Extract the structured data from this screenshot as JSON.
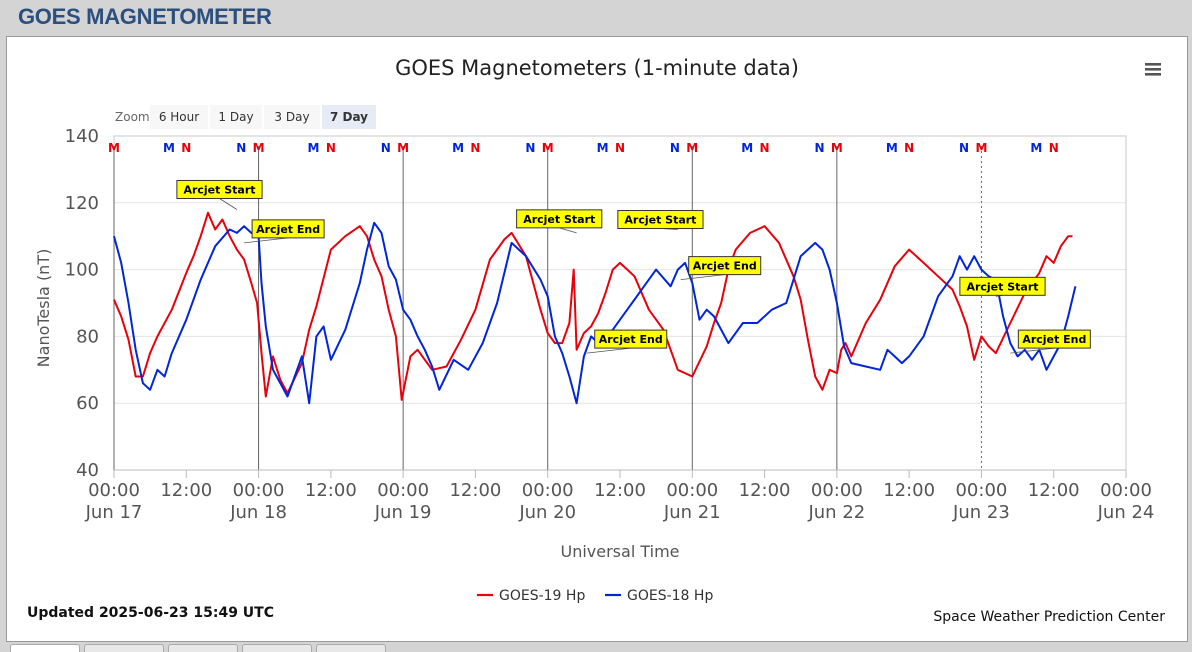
{
  "page": {
    "title": "GOES MAGNETOMETER"
  },
  "zoom": {
    "label": "Zoom",
    "buttons": [
      "6 Hour",
      "1 Day",
      "3 Day",
      "7 Day"
    ],
    "selected": "7 Day"
  },
  "footer": {
    "updated": "Updated 2025-06-23 15:49 UTC",
    "credit": "Space Weather Prediction Center"
  },
  "chart_data": {
    "type": "line",
    "title": "GOES Magnetometers (1-minute data)",
    "xlabel": "Universal Time",
    "ylabel": "NanoTesla (nT)",
    "ylim": [
      40,
      140
    ],
    "y_ticks": [
      "40",
      "60",
      "80",
      "100",
      "120",
      "140"
    ],
    "x_ticks": [
      {
        "day": 0,
        "t": "00:00",
        "d": "Jun 17"
      },
      {
        "day": 0.5,
        "t": "12:00",
        "d": ""
      },
      {
        "day": 1,
        "t": "00:00",
        "d": "Jun 18"
      },
      {
        "day": 1.5,
        "t": "12:00",
        "d": ""
      },
      {
        "day": 2,
        "t": "00:00",
        "d": "Jun 19"
      },
      {
        "day": 2.5,
        "t": "12:00",
        "d": ""
      },
      {
        "day": 3,
        "t": "00:00",
        "d": "Jun 20"
      },
      {
        "day": 3.5,
        "t": "12:00",
        "d": ""
      },
      {
        "day": 4,
        "t": "00:00",
        "d": "Jun 21"
      },
      {
        "day": 4.5,
        "t": "12:00",
        "d": ""
      },
      {
        "day": 5,
        "t": "00:00",
        "d": "Jun 22"
      },
      {
        "day": 5.5,
        "t": "12:00",
        "d": ""
      },
      {
        "day": 6,
        "t": "00:00",
        "d": "Jun 23"
      },
      {
        "day": 6.5,
        "t": "12:00",
        "d": ""
      },
      {
        "day": 7,
        "t": "00:00",
        "d": "Jun 24"
      }
    ],
    "grid": "horizontal",
    "legend_position": "bottom-center",
    "series": [
      {
        "name": "GOES-19 Hp",
        "color": "#e8000b",
        "x": [
          0,
          0.05,
          0.1,
          0.15,
          0.2,
          0.25,
          0.3,
          0.4,
          0.5,
          0.55,
          0.6,
          0.65,
          0.7,
          0.75,
          0.8,
          0.85,
          0.9,
          0.95,
          0.99,
          1.02,
          1.05,
          1.1,
          1.15,
          1.2,
          1.3,
          1.35,
          1.4,
          1.5,
          1.6,
          1.7,
          1.75,
          1.8,
          1.85,
          1.9,
          1.95,
          1.99,
          2.05,
          2.1,
          2.2,
          2.3,
          2.4,
          2.5,
          2.6,
          2.7,
          2.75,
          2.85,
          2.95,
          3.0,
          3.05,
          3.1,
          3.15,
          3.18,
          3.2,
          3.25,
          3.3,
          3.35,
          3.4,
          3.45,
          3.5,
          3.6,
          3.7,
          3.8,
          3.9,
          4.0,
          4.1,
          4.15,
          4.2,
          4.25,
          4.3,
          4.4,
          4.5,
          4.6,
          4.7,
          4.75,
          4.8,
          4.85,
          4.9,
          4.95,
          5.0,
          5.03,
          5.06,
          5.1,
          5.2,
          5.3,
          5.4,
          5.5,
          5.6,
          5.7,
          5.8,
          5.85,
          5.9,
          5.95,
          6.0,
          6.05,
          6.1,
          6.2,
          6.3,
          6.4,
          6.45,
          6.5,
          6.55,
          6.6,
          6.63
        ],
        "y": [
          91,
          86,
          79,
          68,
          68,
          75,
          80,
          88,
          99,
          104,
          110,
          117,
          112,
          115,
          110,
          106,
          103,
          96,
          90,
          75,
          62,
          74,
          67,
          63,
          72,
          82,
          89,
          106,
          110,
          113,
          110,
          103,
          98,
          88,
          80,
          61,
          74,
          76,
          70,
          71,
          79,
          88,
          103,
          109,
          111,
          104,
          88,
          81,
          78,
          78,
          84,
          100,
          76,
          81,
          83,
          87,
          93,
          100,
          102,
          98,
          88,
          82,
          70,
          68,
          77,
          84,
          90,
          100,
          106,
          111,
          113,
          108,
          98,
          91,
          79,
          68,
          64,
          70,
          69,
          76,
          78,
          74,
          84,
          91,
          101,
          106,
          102,
          98,
          94,
          89,
          83,
          73,
          80,
          77,
          75,
          84,
          93,
          99,
          104,
          102,
          107,
          110,
          110
        ]
      },
      {
        "name": "GOES-18 Hp",
        "color": "#0025db",
        "x": [
          0,
          0.05,
          0.1,
          0.15,
          0.2,
          0.25,
          0.3,
          0.35,
          0.4,
          0.5,
          0.6,
          0.7,
          0.8,
          0.85,
          0.9,
          0.95,
          1.0,
          1.02,
          1.05,
          1.1,
          1.15,
          1.2,
          1.3,
          1.35,
          1.4,
          1.45,
          1.5,
          1.6,
          1.7,
          1.75,
          1.8,
          1.85,
          1.9,
          1.95,
          2.0,
          2.05,
          2.1,
          2.15,
          2.2,
          2.25,
          2.35,
          2.45,
          2.55,
          2.65,
          2.75,
          2.85,
          2.95,
          3.0,
          3.05,
          3.1,
          3.15,
          3.2,
          3.25,
          3.3,
          3.35,
          3.45,
          3.55,
          3.65,
          3.75,
          3.85,
          3.9,
          3.95,
          4.0,
          4.05,
          4.1,
          4.15,
          4.25,
          4.35,
          4.45,
          4.55,
          4.65,
          4.75,
          4.85,
          4.9,
          4.95,
          5.0,
          5.05,
          5.1,
          5.2,
          5.3,
          5.35,
          5.4,
          5.45,
          5.5,
          5.6,
          5.7,
          5.8,
          5.85,
          5.9,
          5.95,
          6.0,
          6.05,
          6.1,
          6.15,
          6.2,
          6.25,
          6.3,
          6.35,
          6.4,
          6.45,
          6.5,
          6.55,
          6.6,
          6.65
        ],
        "y": [
          110,
          102,
          90,
          76,
          66,
          64,
          70,
          68,
          75,
          85,
          97,
          107,
          112,
          111,
          113,
          111,
          110,
          96,
          83,
          70,
          66,
          62,
          74,
          60,
          80,
          83,
          73,
          82,
          96,
          106,
          114,
          111,
          101,
          97,
          88,
          85,
          80,
          76,
          71,
          64,
          73,
          70,
          78,
          90,
          108,
          104,
          97,
          92,
          80,
          75,
          68,
          60,
          74,
          80,
          78,
          82,
          88,
          94,
          100,
          95,
          100,
          102,
          96,
          85,
          88,
          86,
          78,
          84,
          84,
          88,
          90,
          104,
          108,
          106,
          100,
          90,
          77,
          72,
          71,
          70,
          76,
          74,
          72,
          74,
          80,
          92,
          98,
          104,
          100,
          104,
          100,
          98,
          97,
          86,
          78,
          74,
          76,
          73,
          76,
          70,
          74,
          78,
          86,
          95
        ]
      }
    ],
    "markers": [
      {
        "day": 0.0,
        "label": "M",
        "color": "#e8000b"
      },
      {
        "day": 0.38,
        "label": "M",
        "color": "#0025db"
      },
      {
        "day": 0.5,
        "label": "N",
        "color": "#e8000b"
      },
      {
        "day": 0.88,
        "label": "N",
        "color": "#0025db"
      },
      {
        "day": 1.0,
        "label": "M",
        "color": "#e8000b"
      },
      {
        "day": 1.38,
        "label": "M",
        "color": "#0025db"
      },
      {
        "day": 1.5,
        "label": "N",
        "color": "#e8000b"
      },
      {
        "day": 1.88,
        "label": "N",
        "color": "#0025db"
      },
      {
        "day": 2.0,
        "label": "M",
        "color": "#e8000b"
      },
      {
        "day": 2.38,
        "label": "M",
        "color": "#0025db"
      },
      {
        "day": 2.5,
        "label": "N",
        "color": "#e8000b"
      },
      {
        "day": 2.88,
        "label": "N",
        "color": "#0025db"
      },
      {
        "day": 3.0,
        "label": "M",
        "color": "#e8000b"
      },
      {
        "day": 3.38,
        "label": "M",
        "color": "#0025db"
      },
      {
        "day": 3.5,
        "label": "N",
        "color": "#e8000b"
      },
      {
        "day": 3.88,
        "label": "N",
        "color": "#0025db"
      },
      {
        "day": 4.0,
        "label": "M",
        "color": "#e8000b"
      },
      {
        "day": 4.38,
        "label": "M",
        "color": "#0025db"
      },
      {
        "day": 4.5,
        "label": "N",
        "color": "#e8000b"
      },
      {
        "day": 4.88,
        "label": "N",
        "color": "#0025db"
      },
      {
        "day": 5.0,
        "label": "M",
        "color": "#e8000b"
      },
      {
        "day": 5.38,
        "label": "M",
        "color": "#0025db"
      },
      {
        "day": 5.5,
        "label": "N",
        "color": "#e8000b"
      },
      {
        "day": 5.88,
        "label": "N",
        "color": "#0025db"
      },
      {
        "day": 6.0,
        "label": "M",
        "color": "#e8000b"
      },
      {
        "day": 6.38,
        "label": "M",
        "color": "#0025db"
      },
      {
        "day": 6.5,
        "label": "N",
        "color": "#e8000b"
      }
    ],
    "annotations": [
      {
        "label": "Arcjet Start",
        "day": 0.85,
        "value": 118
      },
      {
        "label": "Arcjet End",
        "day": 0.9,
        "value": 108
      },
      {
        "label": "Arcjet Start",
        "day": 3.2,
        "value": 111
      },
      {
        "label": "Arcjet End",
        "day": 3.27,
        "value": 75
      },
      {
        "label": "Arcjet Start",
        "day": 3.9,
        "value": 112
      },
      {
        "label": "Arcjet End",
        "day": 3.92,
        "value": 97
      },
      {
        "label": "Arcjet Start",
        "day": 6.1,
        "value": 92
      },
      {
        "label": "Arcjet End",
        "day": 6.2,
        "value": 75
      }
    ]
  }
}
